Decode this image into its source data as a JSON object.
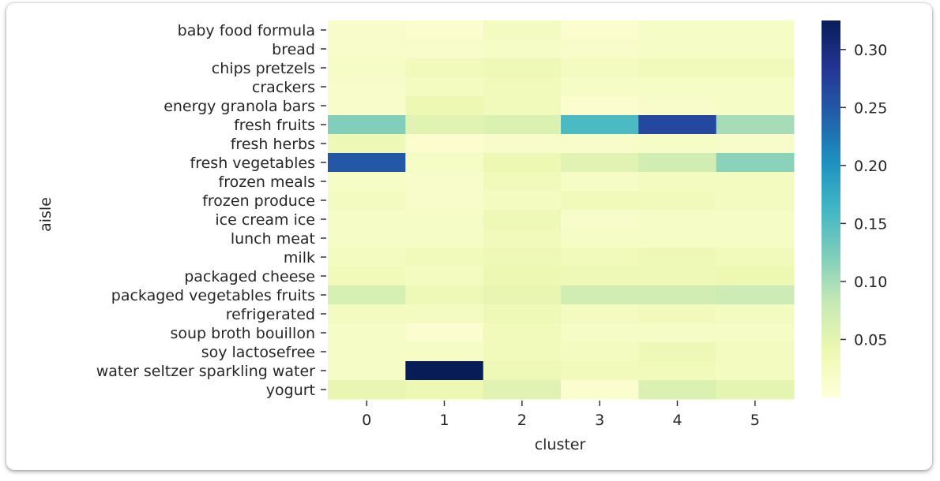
{
  "chart_data": {
    "type": "heatmap",
    "xlabel": "cluster",
    "ylabel": "aisle",
    "x_categories": [
      "0",
      "1",
      "2",
      "3",
      "4",
      "5"
    ],
    "y_categories": [
      "baby food formula",
      "bread",
      "chips pretzels",
      "crackers",
      "energy granola bars",
      "fresh fruits",
      "fresh herbs",
      "fresh vegetables",
      "frozen meals",
      "frozen produce",
      "ice cream ice",
      "lunch meat",
      "milk",
      "packaged cheese",
      "packaged vegetables fruits",
      "refrigerated",
      "soup broth bouillon",
      "soy lactosefree",
      "water seltzer sparkling water",
      "yogurt"
    ],
    "values": [
      [
        0.015,
        0.01,
        0.025,
        0.01,
        0.02,
        0.02
      ],
      [
        0.015,
        0.015,
        0.02,
        0.015,
        0.02,
        0.02
      ],
      [
        0.02,
        0.03,
        0.035,
        0.025,
        0.03,
        0.03
      ],
      [
        0.015,
        0.025,
        0.03,
        0.02,
        0.02,
        0.02
      ],
      [
        0.015,
        0.04,
        0.03,
        0.01,
        0.015,
        0.02
      ],
      [
        0.12,
        0.055,
        0.06,
        0.155,
        0.265,
        0.1
      ],
      [
        0.035,
        0.01,
        0.015,
        0.015,
        0.02,
        0.015
      ],
      [
        0.25,
        0.02,
        0.04,
        0.055,
        0.07,
        0.115
      ],
      [
        0.02,
        0.015,
        0.03,
        0.02,
        0.025,
        0.025
      ],
      [
        0.025,
        0.015,
        0.025,
        0.03,
        0.03,
        0.025
      ],
      [
        0.02,
        0.02,
        0.035,
        0.015,
        0.02,
        0.02
      ],
      [
        0.02,
        0.02,
        0.03,
        0.02,
        0.02,
        0.02
      ],
      [
        0.025,
        0.03,
        0.035,
        0.03,
        0.035,
        0.03
      ],
      [
        0.03,
        0.025,
        0.04,
        0.035,
        0.035,
        0.04
      ],
      [
        0.065,
        0.035,
        0.045,
        0.07,
        0.07,
        0.075
      ],
      [
        0.025,
        0.025,
        0.035,
        0.025,
        0.03,
        0.025
      ],
      [
        0.02,
        0.01,
        0.03,
        0.02,
        0.02,
        0.02
      ],
      [
        0.02,
        0.02,
        0.03,
        0.025,
        0.035,
        0.025
      ],
      [
        0.02,
        0.325,
        0.035,
        0.03,
        0.03,
        0.025
      ],
      [
        0.045,
        0.04,
        0.055,
        0.01,
        0.06,
        0.05
      ]
    ],
    "vmin": 0.0,
    "vmax": 0.325,
    "colorbar_ticks": [
      0.05,
      0.1,
      0.15,
      0.2,
      0.25,
      0.3
    ],
    "colorbar_tick_labels": [
      "0.05",
      "0.10",
      "0.15",
      "0.20",
      "0.25",
      "0.30"
    ],
    "colormap": "YlGnBu",
    "colormap_stops": [
      "#ffffd9",
      "#edf8b1",
      "#c7e9b4",
      "#7fcdbb",
      "#41b6c4",
      "#1d91c0",
      "#225ea8",
      "#253494",
      "#081d58"
    ]
  }
}
